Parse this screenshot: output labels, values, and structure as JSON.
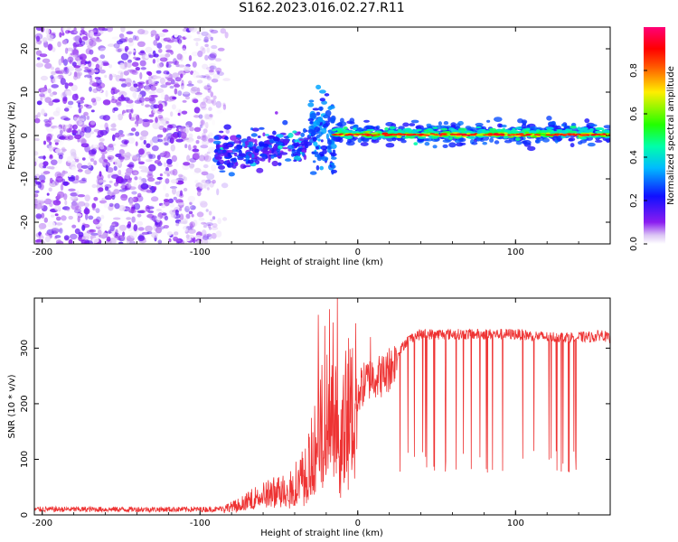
{
  "title": "S162.2023.016.02.27.R11",
  "colors": {
    "snr_line": "#ee3333",
    "axes": "#000000"
  },
  "chart_data": [
    {
      "type": "heatmap",
      "xlabel": "Height of straight line (km)",
      "ylabel": "Frequency (Hz)",
      "xlim": [
        -205,
        160
      ],
      "ylim": [
        -25,
        25
      ],
      "x_ticks": [
        -200,
        -100,
        0,
        100
      ],
      "y_ticks": [
        -20,
        -10,
        0,
        10,
        20
      ],
      "x_tick_labels": [
        "-200",
        "-100",
        "0",
        "100"
      ],
      "y_tick_labels": [
        "-20",
        "-10",
        "0",
        "10",
        "20"
      ],
      "colorbar": {
        "label": "Normalized spectral amplitude",
        "range": [
          0,
          1
        ],
        "ticks": [
          0,
          0.2,
          0.4,
          0.6,
          0.8
        ],
        "tick_labels": [
          "0.0",
          "0.2",
          "0.4",
          "0.6",
          "0.8"
        ],
        "colormap": "gist_rainbow (violet-blue-cyan-green-yellow-red-magenta)"
      },
      "regions": [
        {
          "name": "noise",
          "x_range": [
            -205,
            -90
          ],
          "freq_range": [
            -25,
            25
          ],
          "amplitude": [
            0.0,
            0.15
          ]
        },
        {
          "name": "onset",
          "x_range": [
            -90,
            -30
          ],
          "freq_center": -4,
          "freq_spread": 3,
          "amplitude": [
            0.1,
            0.3
          ]
        },
        {
          "name": "transition",
          "x_range": [
            -30,
            -15
          ],
          "freq_center": 0,
          "freq_spread": 4,
          "amplitude": [
            0.2,
            0.35
          ]
        },
        {
          "name": "carrier",
          "x_range": [
            -15,
            160
          ],
          "freq_center": 0.5,
          "freq_spread": 1,
          "amplitude": [
            0.3,
            1.0
          ]
        }
      ],
      "grid": false
    },
    {
      "type": "line",
      "xlabel": "Height of straight line (km)",
      "ylabel": "SNR (10 * v/v)",
      "xlim": [
        -205,
        160
      ],
      "ylim": [
        0,
        390
      ],
      "x_ticks": [
        -200,
        -100,
        0,
        100
      ],
      "y_ticks": [
        0,
        100,
        200,
        300
      ],
      "x_tick_labels": [
        "-200",
        "-100",
        "0",
        "100"
      ],
      "y_tick_labels": [
        "0",
        "100",
        "200",
        "300"
      ],
      "series": [
        {
          "color": "#ee3333",
          "x": [
            -205,
            -150,
            -100,
            -90,
            -80,
            -70,
            -60,
            -50,
            -40,
            -35,
            -30,
            -25,
            -20,
            -15,
            -12,
            -10,
            -5,
            0,
            5,
            10,
            15,
            20,
            25,
            30,
            35,
            40,
            60,
            80,
            100,
            120,
            140,
            150,
            155,
            160
          ],
          "y": [
            10,
            10,
            10,
            10,
            15,
            25,
            40,
            45,
            60,
            75,
            100,
            170,
            180,
            230,
            110,
            170,
            210,
            220,
            240,
            250,
            250,
            260,
            285,
            310,
            320,
            325,
            325,
            325,
            325,
            320,
            320,
            320,
            325,
            315
          ],
          "spikes": [
            {
              "x": -25,
              "y": 360
            },
            {
              "x": -21,
              "y": 340
            },
            {
              "x": -18,
              "y": 370
            },
            {
              "x": -13,
              "y": 390
            },
            {
              "x": 8,
              "y": 320
            },
            {
              "x": 20,
              "y": 300
            }
          ],
          "dropouts": {
            "x_range": [
              25,
              140
            ],
            "low_y": 95
          }
        }
      ],
      "grid": false
    }
  ]
}
